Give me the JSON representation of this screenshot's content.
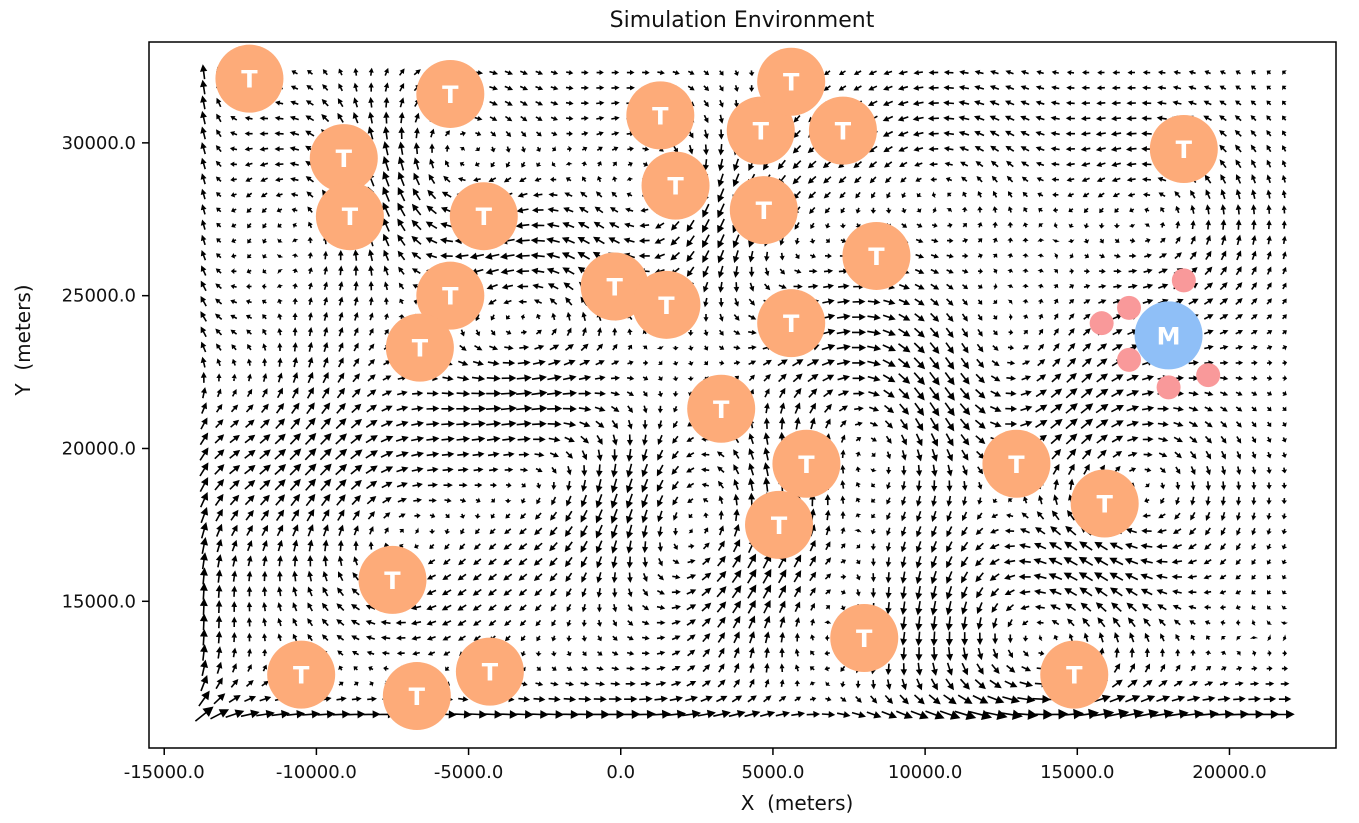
{
  "chart_data": {
    "type": "scatter",
    "title": "Simulation Environment",
    "xlabel": "X  (meters)",
    "ylabel": "Y  (meters)",
    "xlim": [
      -15500,
      23500
    ],
    "ylim": [
      10200,
      33300
    ],
    "x_ticks": [
      -15000,
      -10000,
      -5000,
      0,
      5000,
      10000,
      15000,
      20000
    ],
    "x_tick_labels": [
      "-15000.0",
      "-10000.0",
      "-5000.0",
      "0.0",
      "5000.0",
      "10000.0",
      "15000.0",
      "20000.0"
    ],
    "y_ticks": [
      15000,
      20000,
      25000,
      30000
    ],
    "y_tick_labels": [
      "15000.0",
      "20000.0",
      "25000.0",
      "30000.0"
    ],
    "grid": false,
    "legend": "none",
    "colors": {
      "target": "#fdab79",
      "mothership": "#8fbff7",
      "drone": "#f9999a",
      "arrow": "#000000"
    },
    "vector_field": {
      "kind": "quiver",
      "x_range": [
        -13700,
        21900
      ],
      "y_range": [
        11300,
        32300
      ],
      "spacing": 500
    },
    "series": [
      {
        "label": "T",
        "points": [
          {
            "x": -12200,
            "y": 32100
          },
          {
            "x": -5600,
            "y": 31600
          },
          {
            "x": -9100,
            "y": 29500
          },
          {
            "x": -8900,
            "y": 27600
          },
          {
            "x": -4500,
            "y": 27600
          },
          {
            "x": -5600,
            "y": 25000
          },
          {
            "x": -6600,
            "y": 23300
          },
          {
            "x": -200,
            "y": 25300
          },
          {
            "x": 1500,
            "y": 24700
          },
          {
            "x": 1300,
            "y": 30900
          },
          {
            "x": 1800,
            "y": 28600
          },
          {
            "x": 4600,
            "y": 30400
          },
          {
            "x": 5600,
            "y": 32000
          },
          {
            "x": 7300,
            "y": 30400
          },
          {
            "x": 4700,
            "y": 27800
          },
          {
            "x": 8400,
            "y": 26300
          },
          {
            "x": 5600,
            "y": 24100
          },
          {
            "x": 3300,
            "y": 21300
          },
          {
            "x": 6100,
            "y": 19500
          },
          {
            "x": 5200,
            "y": 17500
          },
          {
            "x": 13000,
            "y": 19500
          },
          {
            "x": 15900,
            "y": 18200
          },
          {
            "x": 18500,
            "y": 29800
          },
          {
            "x": -7500,
            "y": 15700
          },
          {
            "x": 8000,
            "y": 13800
          },
          {
            "x": -10500,
            "y": 12600
          },
          {
            "x": -6700,
            "y": 11900
          },
          {
            "x": -4300,
            "y": 12700
          },
          {
            "x": 14900,
            "y": 12600
          }
        ]
      },
      {
        "label": "M",
        "points": [
          {
            "x": 18000,
            "y": 23700
          }
        ]
      },
      {
        "label": "",
        "points": [
          {
            "x": 18500,
            "y": 25500
          },
          {
            "x": 16700,
            "y": 24600
          },
          {
            "x": 15800,
            "y": 24100
          },
          {
            "x": 16700,
            "y": 22900
          },
          {
            "x": 18000,
            "y": 22000
          },
          {
            "x": 19300,
            "y": 22400
          }
        ]
      }
    ]
  }
}
